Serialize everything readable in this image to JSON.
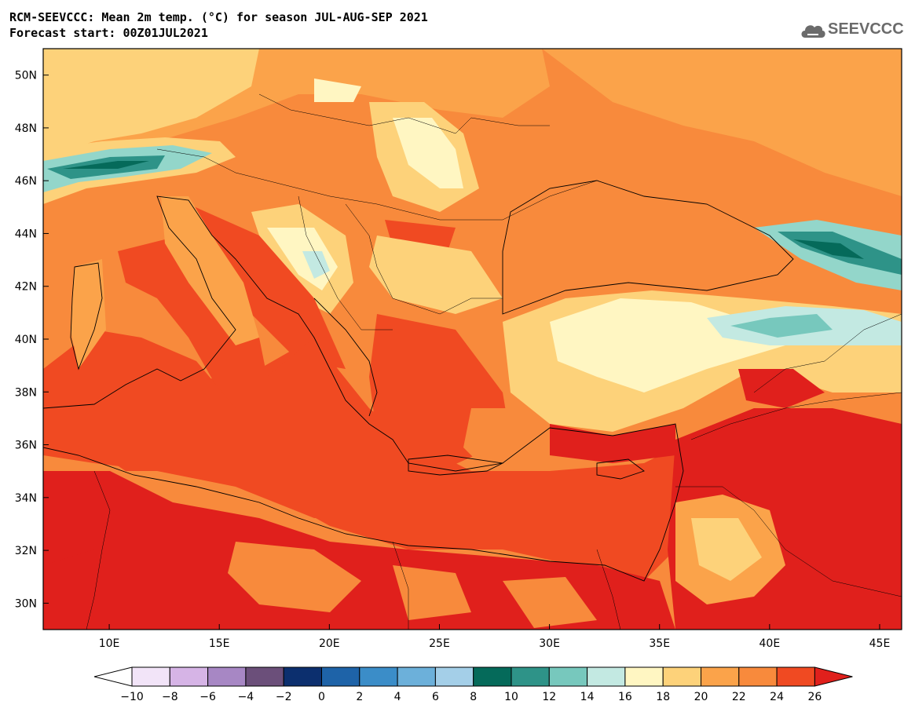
{
  "header": {
    "title_line1": "RCM-SEEVCCC: Mean 2m temp. (°C) for season JUL-AUG-SEP 2021",
    "title_line2": "Forecast start: 00Z01JUL2021"
  },
  "logo": {
    "text": "SEEVCCC",
    "icon": "cloud-icon",
    "color": "#6b6b6b"
  },
  "map": {
    "lon_ticks": [
      "10E",
      "15E",
      "20E",
      "25E",
      "30E",
      "35E",
      "40E",
      "45E"
    ],
    "lat_ticks": [
      "50N",
      "48N",
      "46N",
      "44N",
      "42N",
      "40N",
      "38N",
      "36N",
      "34N",
      "32N",
      "30N"
    ],
    "lon_range": [
      7,
      46
    ],
    "lat_range": [
      29,
      51
    ],
    "colors": {
      "sea": "#f04a22",
      "land_base": "#f88a3c",
      "hot": "#e0201c",
      "warm": "#fba34a",
      "mild": "#fdd27a",
      "cool": "#fff6c2",
      "cold": "#93d6ca",
      "cold_deep": "#2e9388"
    }
  },
  "colorbar": {
    "labels": [
      "-10",
      "-8",
      "-6",
      "-4",
      "-2",
      "0",
      "2",
      "4",
      "6",
      "8",
      "10",
      "12",
      "14",
      "16",
      "18",
      "20",
      "22",
      "24",
      "26"
    ],
    "colors": [
      "#ffffff",
      "#f2e4f8",
      "#d6b4e6",
      "#a787c4",
      "#6b4f7a",
      "#0c2f6e",
      "#1e63a8",
      "#3b8dc8",
      "#6cb0da",
      "#a4cfe8",
      "#056a5a",
      "#2e9388",
      "#77c8bd",
      "#c3e9e2",
      "#fff6c2",
      "#fdd27a",
      "#fba34a",
      "#f88a3c",
      "#f04a22",
      "#e0201c"
    ]
  }
}
